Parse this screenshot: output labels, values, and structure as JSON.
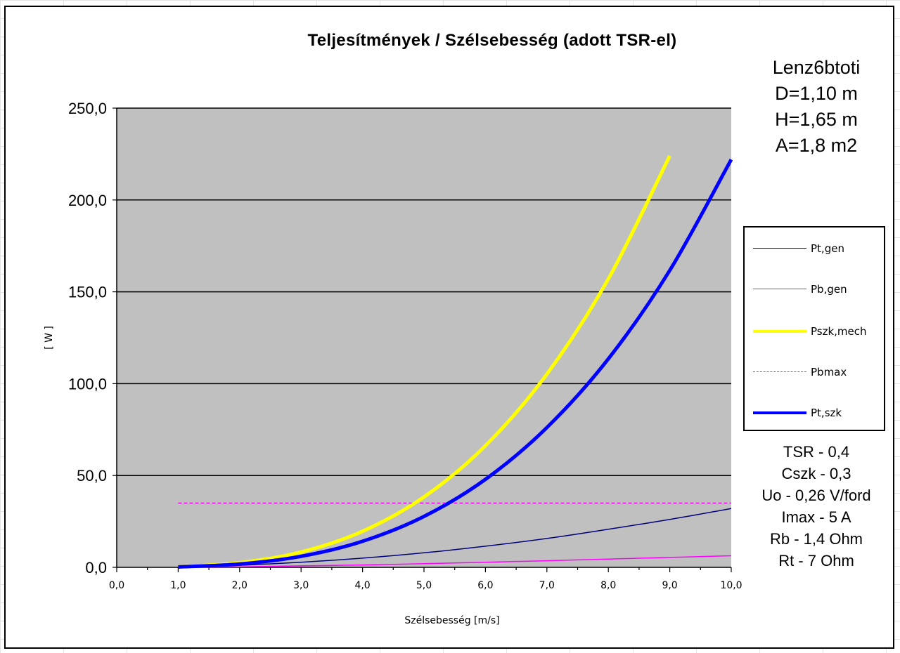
{
  "chart_data": {
    "type": "line",
    "title": "Teljesítmények  / Szélsebesség  (adott TSR-el)",
    "xlabel": "Szélsebesség [m/s]",
    "ylabel": "[ W ]",
    "xlim": [
      0,
      10
    ],
    "ylim": [
      0,
      250
    ],
    "x_ticks": [
      "0,0",
      "1,0",
      "2,0",
      "3,0",
      "4,0",
      "5,0",
      "6,0",
      "7,0",
      "8,0",
      "9,0",
      "10,0"
    ],
    "y_ticks": [
      "0,0",
      "50,0",
      "100,0",
      "150,0",
      "200,0",
      "250,0"
    ],
    "grid": "horizontal",
    "background": "#c0c0c0",
    "legend_position": "right",
    "series": [
      {
        "name": "Pt,gen",
        "color": "#00007a",
        "style": "thin",
        "x": [
          1,
          2,
          3,
          4,
          5,
          6,
          7,
          8,
          9,
          10
        ],
        "y": [
          0.03,
          1.1,
          2.8,
          5.0,
          7.9,
          11.5,
          15.7,
          20.7,
          26.1,
          32.0
        ]
      },
      {
        "name": "Pb,gen",
        "color": "#ff00ff",
        "style": "thin",
        "x": [
          1,
          2,
          3,
          4,
          5,
          6,
          7,
          8,
          9,
          10
        ],
        "y": [
          0.01,
          0.3,
          0.8,
          1.3,
          2.0,
          2.8,
          3.6,
          4.5,
          5.4,
          6.3
        ]
      },
      {
        "name": "Pszk,mech",
        "color": "#ffff00",
        "style": "thick",
        "x": [
          1,
          2,
          3,
          4,
          5,
          6,
          7,
          8,
          9
        ],
        "y": [
          0.3,
          2.5,
          8.3,
          19.6,
          38.3,
          66.2,
          105.2,
          157.0,
          224.0
        ]
      },
      {
        "name": "Pbmax",
        "color": "#ff00ff",
        "style": "dashed",
        "x": [
          1,
          10
        ],
        "y": [
          35,
          35
        ]
      },
      {
        "name": "Pt,szk",
        "color": "#0000ff",
        "style": "thick",
        "x": [
          1,
          2,
          3,
          4,
          5,
          6,
          7,
          8,
          9,
          10
        ],
        "y": [
          0.22,
          1.8,
          6.0,
          14.2,
          27.7,
          47.9,
          76.1,
          113.5,
          161.7,
          222.0
        ]
      }
    ]
  },
  "info_top": [
    "Lenz6btoti",
    "D=1,10 m",
    "H=1,65 m",
    "A=1,8 m2"
  ],
  "info_bottom": [
    "TSR - 0,4",
    "Cszk - 0,3",
    "Uo - 0,26 V/ford",
    "Imax - 5 A",
    "Rb - 1,4 Ohm",
    "Rt - 7 Ohm"
  ]
}
